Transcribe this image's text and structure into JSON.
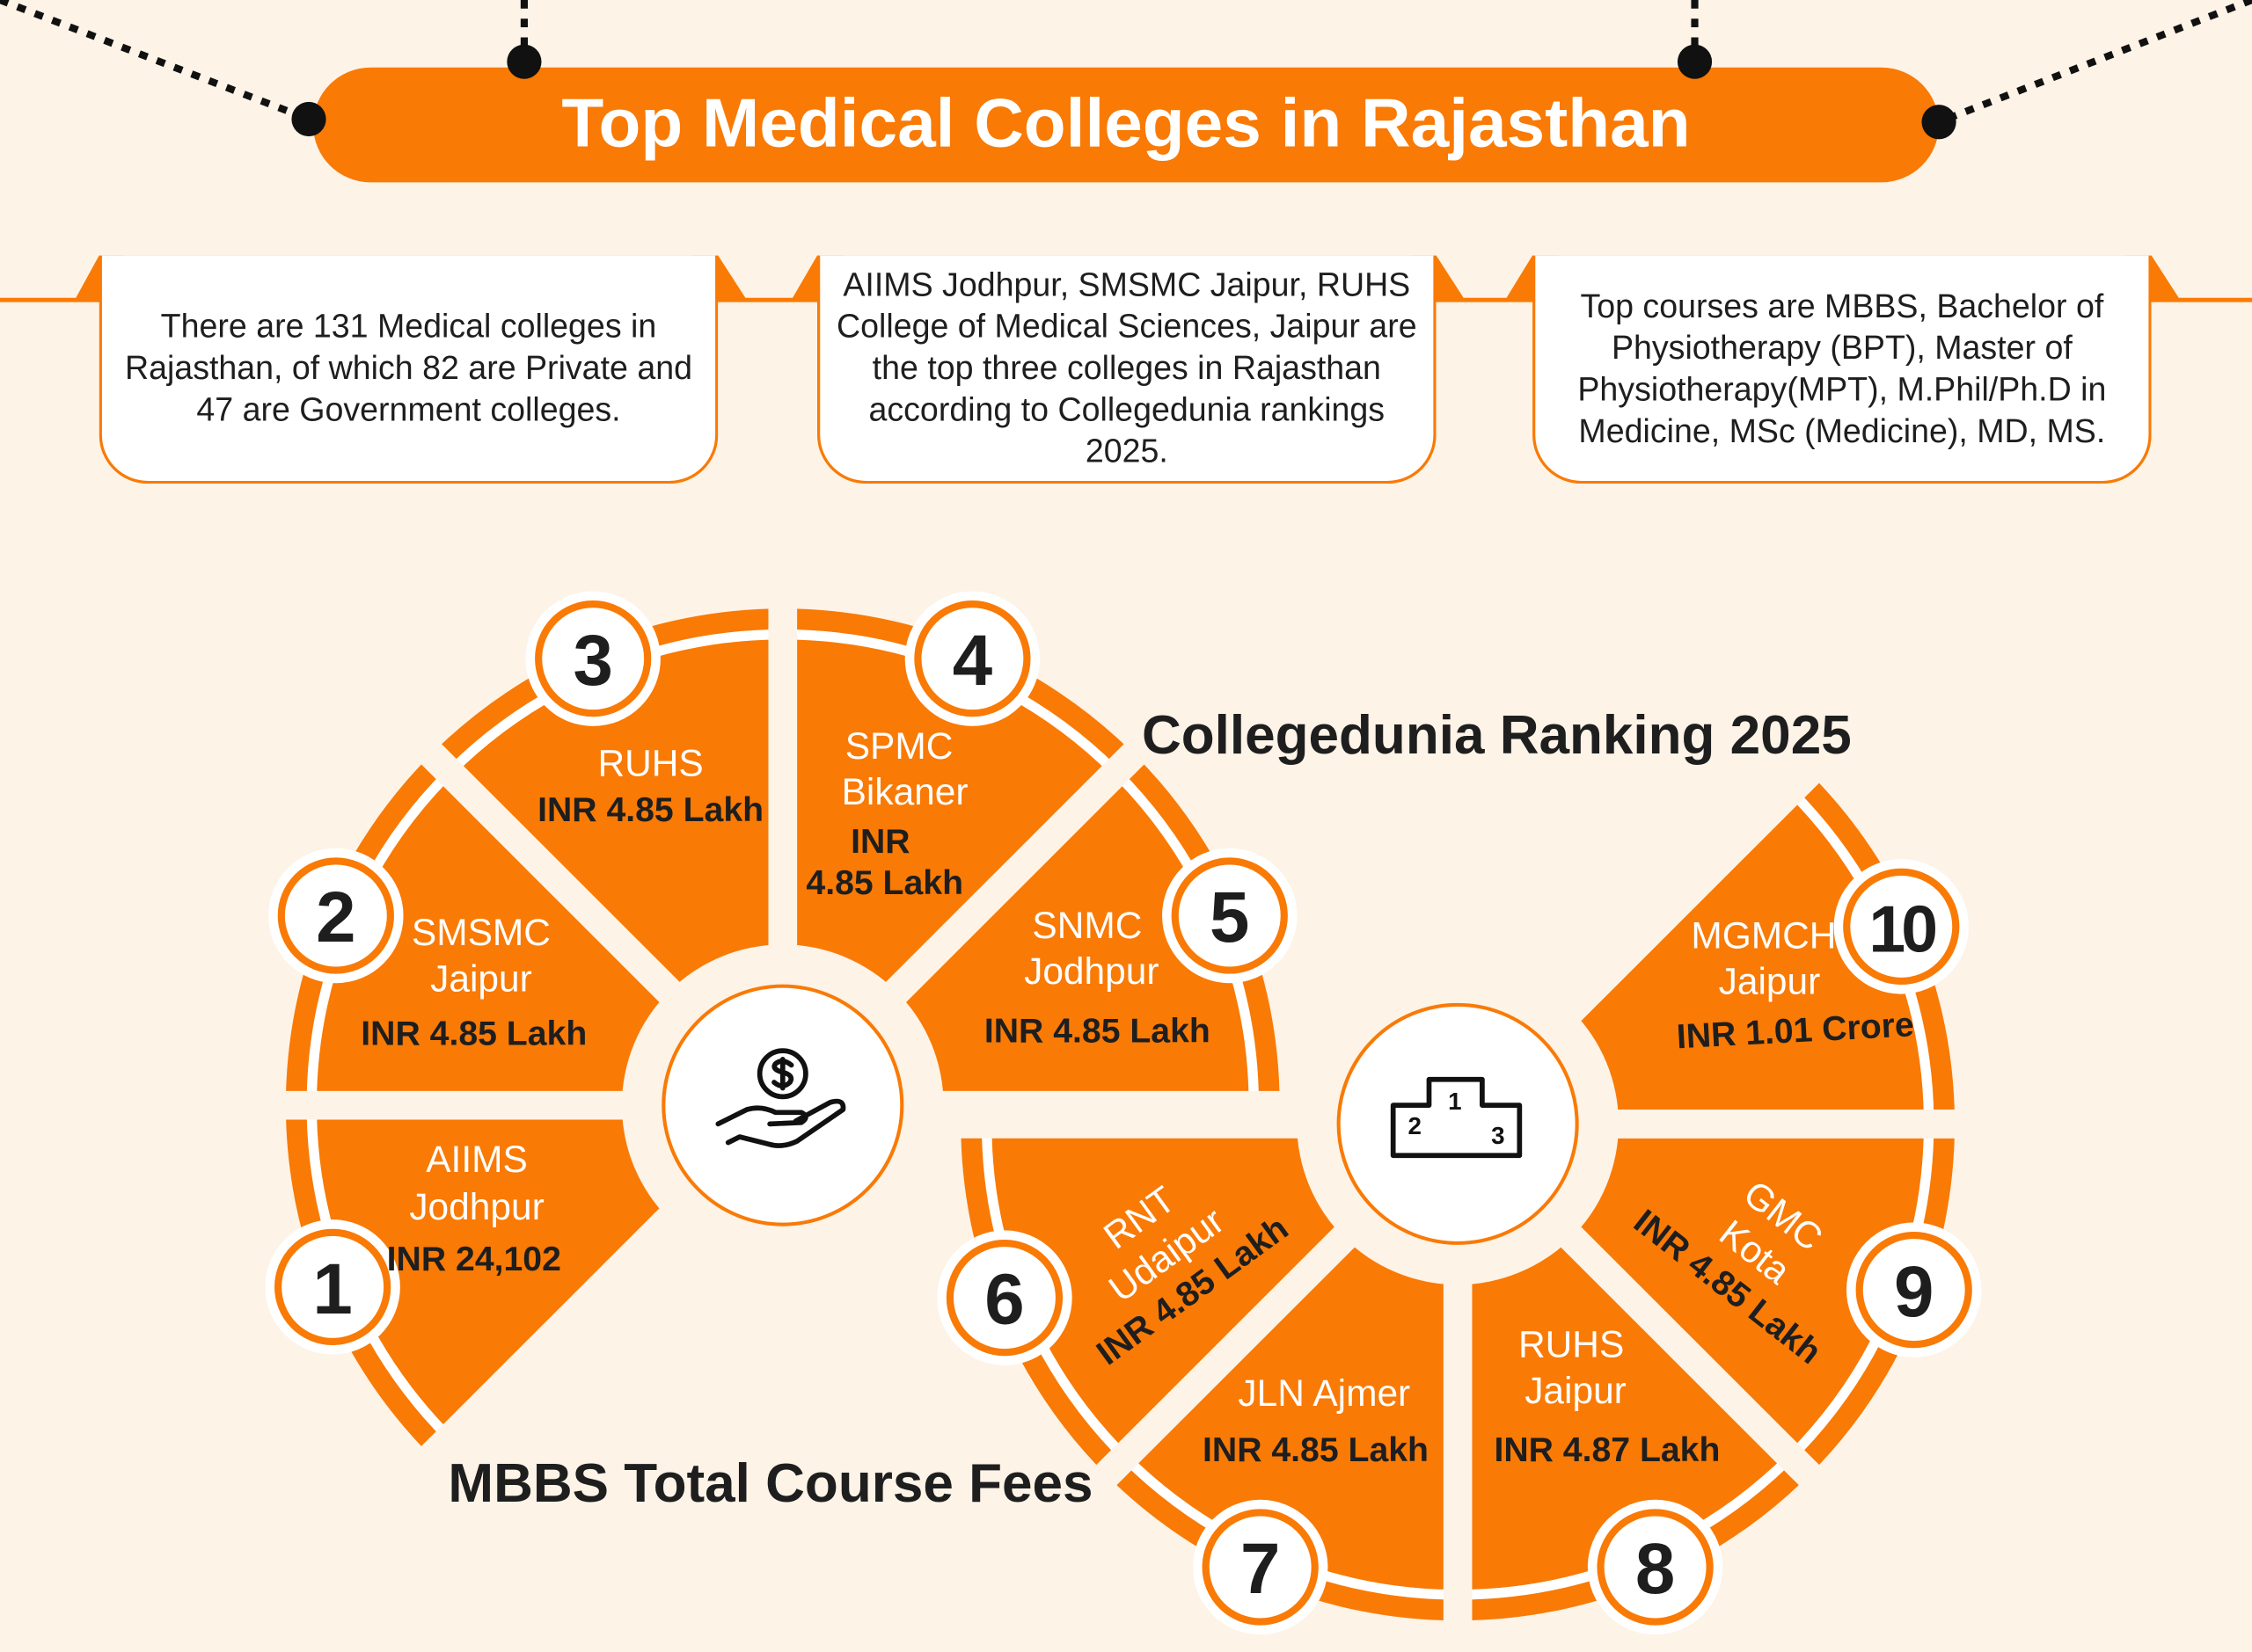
{
  "title": "Top Medical Colleges in Rajasthan",
  "colors": {
    "accent": "#f97a05",
    "background": "#fdf3e7",
    "text": "#1e1e1e"
  },
  "info_boxes": [
    "There are 131 Medical colleges in Rajasthan, of which 82 are Private and 47 are Government colleges.",
    "AIIMS Jodhpur, SMSMC Jaipur, RUHS College of Medical Sciences, Jaipur are the top three colleges in Rajasthan according to Collegedunia rankings 2025.",
    "Top courses are MBBS, Bachelor of Physiotherapy (BPT), Master of Physiotherapy(MPT), M.Phil/Ph.D in Medicine, MSc (Medicine), MD, MS."
  ],
  "headings": {
    "ranking": "Collegedunia Ranking 2025",
    "fees": "MBBS Total Course Fees"
  },
  "icons": {
    "fees_center": "hand-holding-dollar-icon",
    "ranking_center": "podium-icon"
  },
  "podium_labels": [
    "1",
    "2",
    "3"
  ],
  "colleges": [
    {
      "rank": "1",
      "name": [
        "AIIMS",
        "Jodhpur"
      ],
      "fee": "INR 24,102"
    },
    {
      "rank": "2",
      "name": [
        "SMSMC",
        "Jaipur"
      ],
      "fee": "INR 4.85 Lakh"
    },
    {
      "rank": "3",
      "name": [
        "RUHS"
      ],
      "fee": "INR 4.85 Lakh"
    },
    {
      "rank": "4",
      "name": [
        "SPMC",
        "Bikaner"
      ],
      "fee": [
        "INR",
        "4.85 Lakh"
      ]
    },
    {
      "rank": "5",
      "name": [
        "SNMC",
        "Jodhpur"
      ],
      "fee": "INR 4.85 Lakh"
    },
    {
      "rank": "6",
      "name": [
        "RNT",
        "Udaipur"
      ],
      "fee": "INR 4.85 Lakh"
    },
    {
      "rank": "7",
      "name": [
        "JLN Ajmer"
      ],
      "fee": "INR 4.85 Lakh"
    },
    {
      "rank": "8",
      "name": [
        "RUHS",
        "Jaipur"
      ],
      "fee": "INR 4.87 Lakh"
    },
    {
      "rank": "9",
      "name": [
        "GMC",
        "Kota"
      ],
      "fee": "INR 4.85 Lakh"
    },
    {
      "rank": "10",
      "name": [
        "MGMCH",
        "Jaipur"
      ],
      "fee": "INR 1.01 Crore"
    }
  ]
}
